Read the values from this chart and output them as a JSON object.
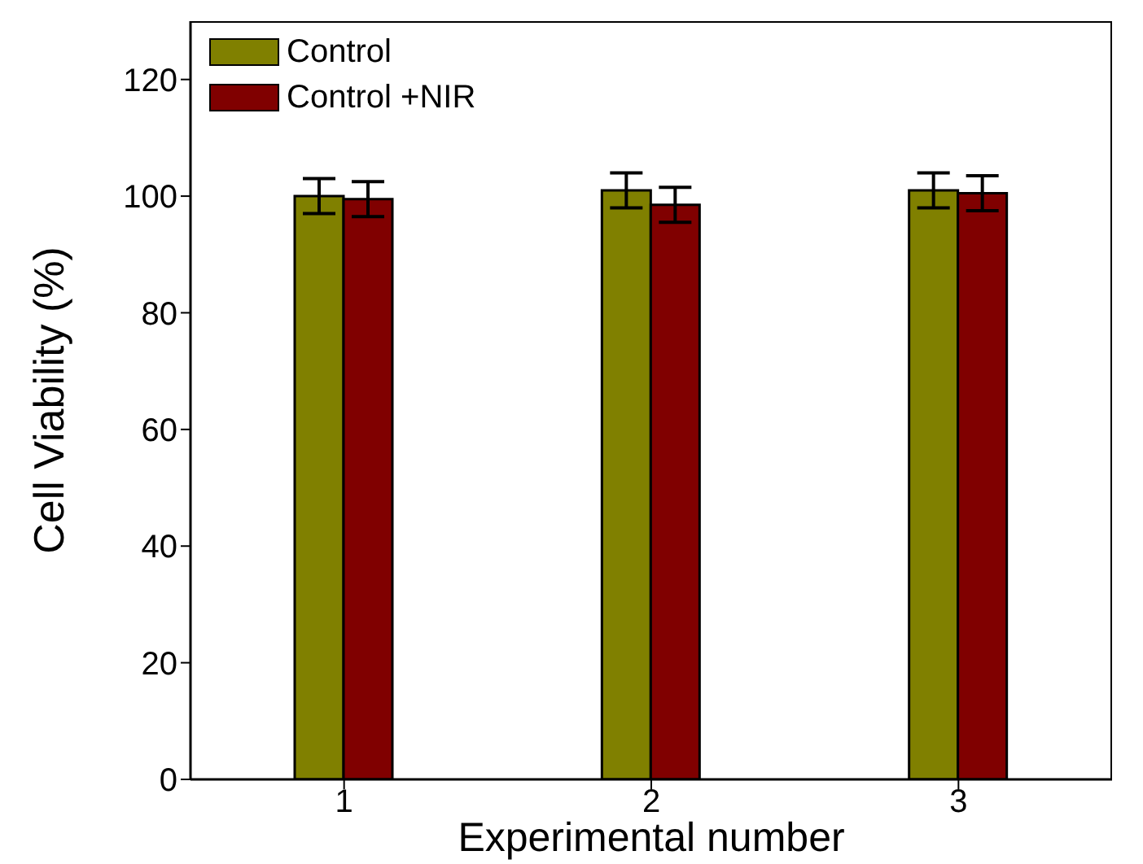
{
  "chart_data": {
    "type": "bar",
    "xlabel": "Experimental number",
    "ylabel": "Cell Viability (%)",
    "categories": [
      "1",
      "2",
      "3"
    ],
    "series": [
      {
        "name": "Control",
        "color": "#808000",
        "values": [
          100,
          101,
          101
        ],
        "errors": [
          3,
          3,
          3
        ]
      },
      {
        "name": "Control +NIR",
        "color": "#800000",
        "values": [
          99.5,
          98.5,
          100.5
        ],
        "errors": [
          3,
          3,
          3
        ]
      }
    ],
    "ylim": [
      0,
      130
    ],
    "yticks": [
      0,
      20,
      40,
      60,
      80,
      100,
      120
    ],
    "grid": false,
    "legend": "top left"
  }
}
